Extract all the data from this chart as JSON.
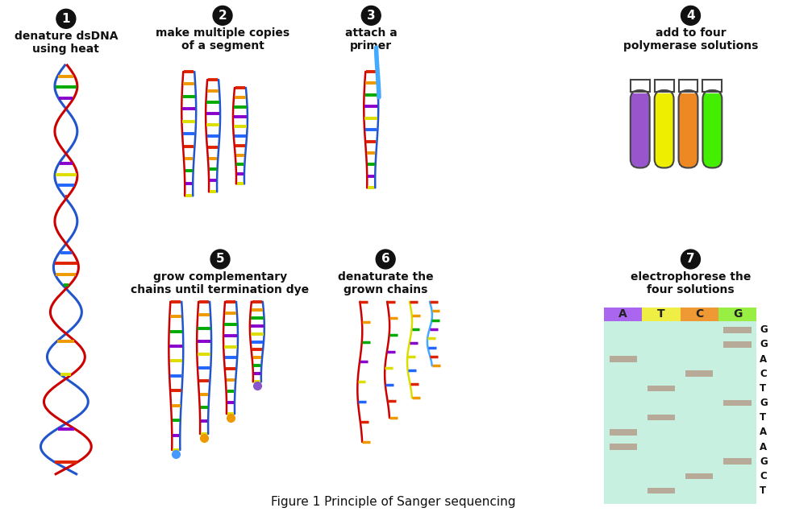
{
  "title": "Figure 1 Principle of Sanger sequencing",
  "background": "#ffffff",
  "strand_red": "#cc0000",
  "strand_blue": "#2255cc",
  "primer_blue": "#44aaff",
  "bar_colors": [
    "#dd2200",
    "#ee9900",
    "#00aa00",
    "#8800cc",
    "#dddd00",
    "#2266ff"
  ],
  "tube_colors": [
    "#9955cc",
    "#eeee00",
    "#ee8822",
    "#44ee00"
  ],
  "tube_border": "#444444",
  "gel_bg": "#c8f0e0",
  "gel_header_colors": [
    "#aa66ee",
    "#eeee44",
    "#ee9933",
    "#99ee44"
  ],
  "gel_labels": [
    "A",
    "T",
    "C",
    "G"
  ],
  "sequence": [
    "G",
    "G",
    "A",
    "C",
    "T",
    "G",
    "T",
    "A",
    "A",
    "G",
    "C",
    "T"
  ],
  "band_color": "#b8aa99",
  "num_circle_color": "#111111",
  "num_text_color": "#ffffff",
  "title_fontsize": 11
}
